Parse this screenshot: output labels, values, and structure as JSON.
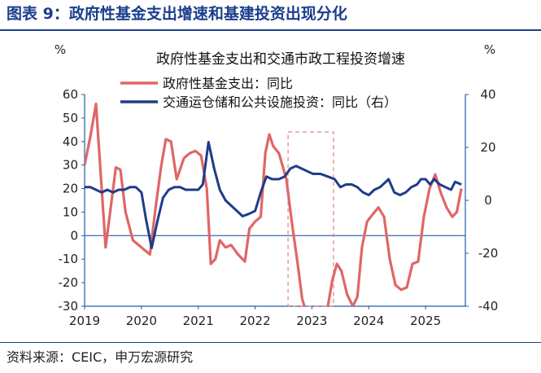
{
  "figure": {
    "title": "图表 9：政府性基金支出增速和基建投资出现分化",
    "source": "资料来源：CEIC，申万宏源研究"
  },
  "chart_data": {
    "type": "line",
    "title": "政府性基金支出和交通市政工程投资增速",
    "ylabel_left": "%",
    "ylabel_right": "%",
    "ylim_left": [
      -30,
      60
    ],
    "yticks_left": [
      -30,
      -20,
      -10,
      0,
      10,
      20,
      30,
      40,
      50,
      60
    ],
    "ylim_right": [
      -40,
      40
    ],
    "yticks_right": [
      -40,
      -20,
      0,
      20,
      40
    ],
    "x_tick_labels": [
      "2019",
      "2020",
      "2021",
      "2022",
      "2023",
      "2024",
      "2025"
    ],
    "legend_position": "top-left",
    "annotation": "dashed box around 2022 H2 - 2023 H1",
    "series": [
      {
        "name": "政府性基金支出：同比",
        "axis": "left",
        "color": "#e06666",
        "points": [
          [
            2019.0,
            30
          ],
          [
            2019.1,
            42
          ],
          [
            2019.2,
            56
          ],
          [
            2019.3,
            20
          ],
          [
            2019.37,
            -5
          ],
          [
            2019.45,
            10
          ],
          [
            2019.55,
            29
          ],
          [
            2019.63,
            28
          ],
          [
            2019.72,
            10
          ],
          [
            2019.85,
            -2
          ],
          [
            2019.95,
            -4
          ],
          [
            2020.05,
            -6
          ],
          [
            2020.15,
            -8
          ],
          [
            2020.25,
            12
          ],
          [
            2020.35,
            30
          ],
          [
            2020.43,
            41
          ],
          [
            2020.52,
            40
          ],
          [
            2020.62,
            24
          ],
          [
            2020.75,
            33
          ],
          [
            2020.85,
            35
          ],
          [
            2020.95,
            36
          ],
          [
            2021.05,
            34
          ],
          [
            2021.15,
            20
          ],
          [
            2021.22,
            -12
          ],
          [
            2021.3,
            -10
          ],
          [
            2021.38,
            -2
          ],
          [
            2021.48,
            -5
          ],
          [
            2021.58,
            -4
          ],
          [
            2021.7,
            -8
          ],
          [
            2021.82,
            -11
          ],
          [
            2021.9,
            3
          ],
          [
            2022.0,
            6
          ],
          [
            2022.1,
            8
          ],
          [
            2022.18,
            35
          ],
          [
            2022.25,
            43
          ],
          [
            2022.32,
            38
          ],
          [
            2022.42,
            35
          ],
          [
            2022.55,
            24
          ],
          [
            2022.65,
            5
          ],
          [
            2022.75,
            -12
          ],
          [
            2022.83,
            -27
          ],
          [
            2022.92,
            -34
          ],
          [
            2023.0,
            -36
          ],
          [
            2023.1,
            -36
          ],
          [
            2023.2,
            -35
          ],
          [
            2023.28,
            -30
          ],
          [
            2023.36,
            -19
          ],
          [
            2023.44,
            -12
          ],
          [
            2023.52,
            -15
          ],
          [
            2023.62,
            -25
          ],
          [
            2023.72,
            -30
          ],
          [
            2023.8,
            -26
          ],
          [
            2023.88,
            -5
          ],
          [
            2023.97,
            6
          ],
          [
            2024.07,
            9
          ],
          [
            2024.17,
            12
          ],
          [
            2024.27,
            8
          ],
          [
            2024.37,
            -10
          ],
          [
            2024.47,
            -21
          ],
          [
            2024.57,
            -23
          ],
          [
            2024.67,
            -22
          ],
          [
            2024.77,
            -12
          ],
          [
            2024.87,
            -11
          ],
          [
            2024.97,
            8
          ],
          [
            2025.07,
            20
          ],
          [
            2025.17,
            26
          ],
          [
            2025.27,
            18
          ],
          [
            2025.37,
            12
          ],
          [
            2025.47,
            8
          ],
          [
            2025.55,
            10
          ],
          [
            2025.63,
            20
          ]
        ]
      },
      {
        "name": "交通运仓储和公共设施投资：同比（右）",
        "axis": "right",
        "color": "#1f3c88",
        "points": [
          [
            2019.0,
            5
          ],
          [
            2019.1,
            5
          ],
          [
            2019.2,
            4
          ],
          [
            2019.3,
            3
          ],
          [
            2019.4,
            4
          ],
          [
            2019.5,
            3
          ],
          [
            2019.6,
            4
          ],
          [
            2019.7,
            4
          ],
          [
            2019.8,
            5
          ],
          [
            2019.9,
            5
          ],
          [
            2020.0,
            3
          ],
          [
            2020.08,
            -7
          ],
          [
            2020.18,
            -18
          ],
          [
            2020.28,
            -8
          ],
          [
            2020.38,
            1
          ],
          [
            2020.48,
            4
          ],
          [
            2020.58,
            5
          ],
          [
            2020.68,
            5
          ],
          [
            2020.78,
            4
          ],
          [
            2020.9,
            4
          ],
          [
            2021.0,
            4
          ],
          [
            2021.08,
            6
          ],
          [
            2021.18,
            22
          ],
          [
            2021.28,
            12
          ],
          [
            2021.38,
            4
          ],
          [
            2021.48,
            0
          ],
          [
            2021.58,
            -2
          ],
          [
            2021.68,
            -4
          ],
          [
            2021.78,
            -6
          ],
          [
            2021.9,
            -5
          ],
          [
            2022.0,
            -4
          ],
          [
            2022.1,
            3
          ],
          [
            2022.2,
            9
          ],
          [
            2022.3,
            8
          ],
          [
            2022.42,
            8
          ],
          [
            2022.52,
            9
          ],
          [
            2022.62,
            12
          ],
          [
            2022.72,
            13
          ],
          [
            2022.82,
            12
          ],
          [
            2022.92,
            11
          ],
          [
            2023.02,
            10
          ],
          [
            2023.15,
            10
          ],
          [
            2023.28,
            9
          ],
          [
            2023.4,
            8
          ],
          [
            2023.5,
            5
          ],
          [
            2023.6,
            6
          ],
          [
            2023.7,
            6
          ],
          [
            2023.8,
            5
          ],
          [
            2023.9,
            3
          ],
          [
            2024.0,
            2
          ],
          [
            2024.1,
            4
          ],
          [
            2024.2,
            5
          ],
          [
            2024.35,
            8
          ],
          [
            2024.45,
            3
          ],
          [
            2024.55,
            2
          ],
          [
            2024.65,
            3
          ],
          [
            2024.75,
            5
          ],
          [
            2024.85,
            6
          ],
          [
            2024.92,
            8
          ],
          [
            2025.0,
            8
          ],
          [
            2025.08,
            6
          ],
          [
            2025.15,
            8
          ],
          [
            2025.25,
            6
          ],
          [
            2025.35,
            5
          ],
          [
            2025.45,
            4
          ],
          [
            2025.52,
            7
          ],
          [
            2025.63,
            6
          ]
        ]
      }
    ]
  }
}
